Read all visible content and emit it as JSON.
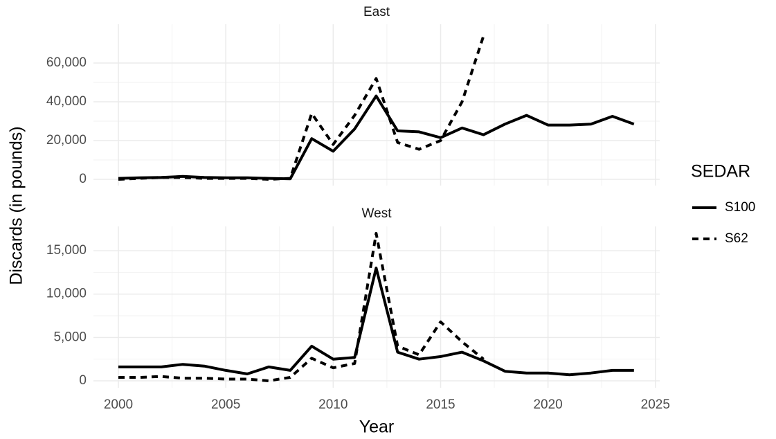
{
  "ylabel": "Discards (in pounds)",
  "xlabel": "Year",
  "legend_title": "SEDAR",
  "chart_data": [
    {
      "type": "line",
      "title": "East",
      "grid": true,
      "x": [
        2000,
        2001,
        2002,
        2003,
        2004,
        2005,
        2006,
        2007,
        2008,
        2009,
        2010,
        2011,
        2012,
        2013,
        2014,
        2015,
        2016,
        2017,
        2018,
        2019,
        2020,
        2021,
        2022,
        2023,
        2024
      ],
      "xlim": [
        1998.84,
        2025.2
      ],
      "xticks": [
        2000,
        2005,
        2010,
        2015,
        2020,
        2025
      ],
      "ylim": [
        -3200,
        80000
      ],
      "yticks": [
        0,
        {
          "value": 20000,
          "label": "20,000"
        },
        {
          "value": 40000,
          "label": "40,000"
        },
        {
          "value": 60000,
          "label": "60,000"
        }
      ],
      "series": [
        {
          "name": "S100",
          "color": "#000000",
          "dash": "solid",
          "values": [
            500,
            800,
            1000,
            1500,
            1000,
            800,
            800,
            500,
            300,
            21000,
            14500,
            26000,
            43000,
            25000,
            24500,
            21500,
            26500,
            23000,
            28500,
            33000,
            28000,
            28000,
            28500,
            32500,
            28500
          ]
        },
        {
          "name": "S62",
          "color": "#000000",
          "dash": "dashed",
          "values": [
            0,
            500,
            1000,
            1000,
            500,
            500,
            500,
            0,
            500,
            34000,
            18000,
            33000,
            52000,
            19000,
            15500,
            20000,
            40000,
            74000,
            null,
            null,
            null,
            null,
            null,
            null,
            null
          ]
        }
      ]
    },
    {
      "type": "line",
      "title": "West",
      "grid": true,
      "x": [
        2000,
        2001,
        2002,
        2003,
        2004,
        2005,
        2006,
        2007,
        2008,
        2009,
        2010,
        2011,
        2012,
        2013,
        2014,
        2015,
        2016,
        2017,
        2018,
        2019,
        2020,
        2021,
        2022,
        2023,
        2024
      ],
      "xlim": [
        1998.84,
        2025.2
      ],
      "xticks": [
        2000,
        2005,
        2010,
        2015,
        2020,
        2025
      ],
      "ylim": [
        -800,
        17800
      ],
      "yticks": [
        0,
        {
          "value": 5000,
          "label": "5,000"
        },
        {
          "value": 10000,
          "label": "10,000"
        },
        {
          "value": 15000,
          "label": "15,000"
        }
      ],
      "series": [
        {
          "name": "S100",
          "color": "#000000",
          "dash": "solid",
          "values": [
            1600,
            1600,
            1600,
            1900,
            1700,
            1200,
            800,
            1600,
            1200,
            4000,
            2500,
            2700,
            13000,
            3300,
            2500,
            2800,
            3300,
            2300,
            1100,
            900,
            900,
            700,
            900,
            1200,
            1200
          ]
        },
        {
          "name": "S62",
          "color": "#000000",
          "dash": "dashed",
          "values": [
            400,
            400,
            500,
            300,
            300,
            200,
            200,
            0,
            400,
            2600,
            1500,
            2000,
            17000,
            4000,
            3000,
            6800,
            4500,
            2500,
            null,
            null,
            null,
            null,
            null,
            null,
            null
          ]
        }
      ]
    }
  ]
}
